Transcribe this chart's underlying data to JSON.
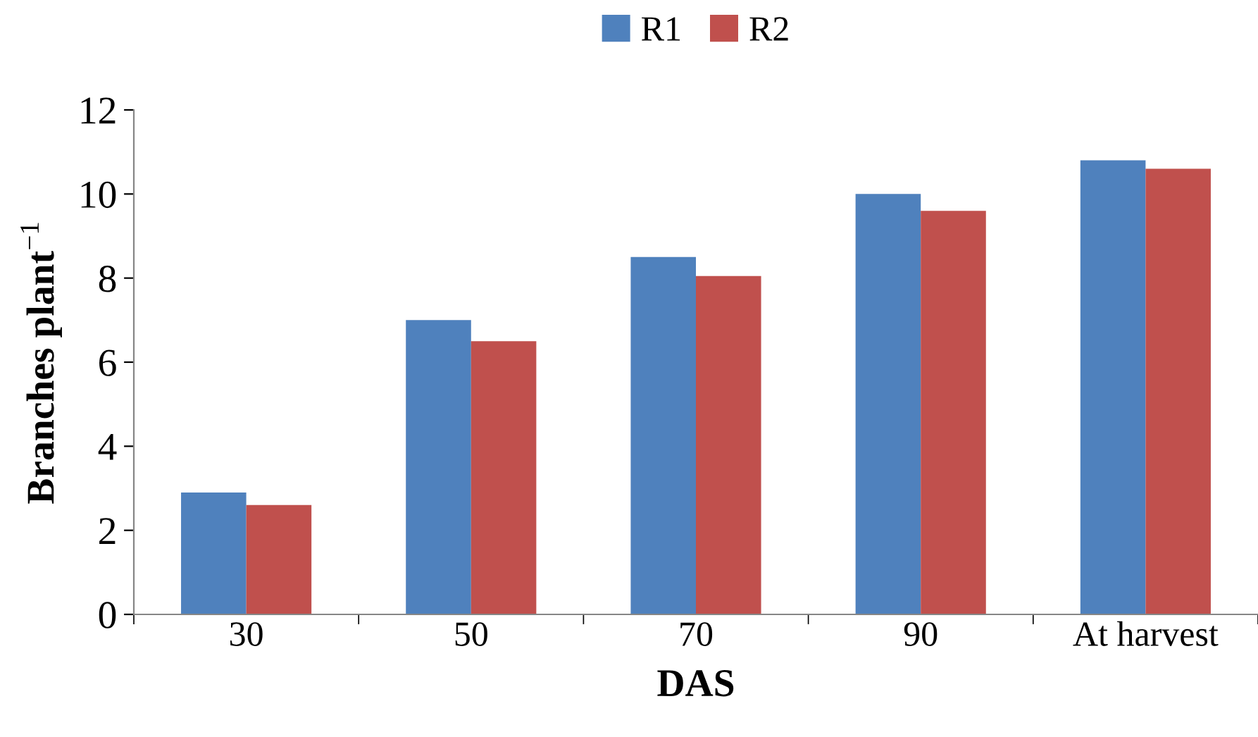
{
  "chart_data": {
    "type": "bar",
    "xlabel": "DAS",
    "ylabel": "Branches plant$^{−1}$",
    "categories": [
      "30",
      "50",
      "70",
      "90",
      "At harvest"
    ],
    "series": [
      {
        "name": "R1",
        "color": "#4f81bd",
        "values": [
          2.9,
          7.0,
          8.5,
          10.0,
          10.8
        ]
      },
      {
        "name": "R2",
        "color": "#c0504d",
        "values": [
          2.6,
          6.5,
          8.05,
          9.6,
          10.6
        ]
      }
    ],
    "ylim": [
      0,
      12
    ],
    "yticks": [
      0,
      2,
      4,
      6,
      8,
      10,
      12
    ],
    "grid": false,
    "legend": "top"
  }
}
